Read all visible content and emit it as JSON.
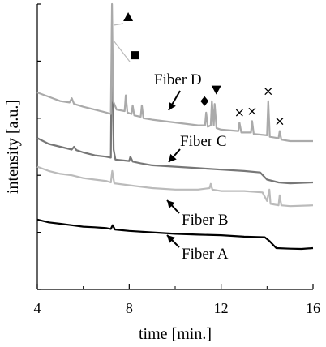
{
  "chart_data": {
    "type": "line",
    "xlabel": "time [min.]",
    "ylabel": "intensity [a.u.]",
    "xlim": [
      4,
      16
    ],
    "xticks": [
      4,
      8,
      12,
      16
    ],
    "ylim": [
      0,
      10
    ],
    "grid": false,
    "series": [
      {
        "name": "Fiber A",
        "color": "#000000",
        "points": [
          [
            4.0,
            2.45
          ],
          [
            4.5,
            2.35
          ],
          [
            5.0,
            2.3
          ],
          [
            5.5,
            2.25
          ],
          [
            6.0,
            2.2
          ],
          [
            6.5,
            2.18
          ],
          [
            7.0,
            2.15
          ],
          [
            7.2,
            2.12
          ],
          [
            7.28,
            2.25
          ],
          [
            7.38,
            2.1
          ],
          [
            8.0,
            2.05
          ],
          [
            9.0,
            2.0
          ],
          [
            10.0,
            1.95
          ],
          [
            11.0,
            1.92
          ],
          [
            12.0,
            1.9
          ],
          [
            13.0,
            1.85
          ],
          [
            13.9,
            1.83
          ],
          [
            14.1,
            1.7
          ],
          [
            14.4,
            1.45
          ],
          [
            15.0,
            1.43
          ],
          [
            15.5,
            1.42
          ],
          [
            16.0,
            1.45
          ]
        ]
      },
      {
        "name": "Fiber B",
        "color": "#bbbbbb",
        "points": [
          [
            4.0,
            4.3
          ],
          [
            4.5,
            4.15
          ],
          [
            5.0,
            4.05
          ],
          [
            5.5,
            4.0
          ],
          [
            6.0,
            3.9
          ],
          [
            6.5,
            3.85
          ],
          [
            7.0,
            3.8
          ],
          [
            7.2,
            3.75
          ],
          [
            7.26,
            4.15
          ],
          [
            7.35,
            3.72
          ],
          [
            8.0,
            3.65
          ],
          [
            8.5,
            3.6
          ],
          [
            9.0,
            3.55
          ],
          [
            10.0,
            3.5
          ],
          [
            11.0,
            3.5
          ],
          [
            11.5,
            3.55
          ],
          [
            11.55,
            3.7
          ],
          [
            11.62,
            3.5
          ],
          [
            12.0,
            3.45
          ],
          [
            13.0,
            3.45
          ],
          [
            13.8,
            3.4
          ],
          [
            14.0,
            3.1
          ],
          [
            14.1,
            3.5
          ],
          [
            14.15,
            3.0
          ],
          [
            14.5,
            2.95
          ],
          [
            14.55,
            3.3
          ],
          [
            14.62,
            2.95
          ],
          [
            15.0,
            2.92
          ],
          [
            16.0,
            2.95
          ]
        ]
      },
      {
        "name": "Fiber C",
        "color": "#777777",
        "points": [
          [
            4.0,
            5.3
          ],
          [
            4.5,
            5.1
          ],
          [
            5.0,
            5.0
          ],
          [
            5.5,
            4.9
          ],
          [
            5.6,
            5.0
          ],
          [
            5.7,
            4.88
          ],
          [
            6.0,
            4.8
          ],
          [
            6.5,
            4.7
          ],
          [
            7.0,
            4.65
          ],
          [
            7.2,
            4.62
          ],
          [
            7.25,
            9.4
          ],
          [
            7.32,
            4.9
          ],
          [
            7.4,
            4.55
          ],
          [
            8.0,
            4.5
          ],
          [
            8.05,
            4.65
          ],
          [
            8.15,
            4.48
          ],
          [
            8.5,
            4.42
          ],
          [
            9.0,
            4.35
          ],
          [
            10.0,
            4.3
          ],
          [
            11.0,
            4.25
          ],
          [
            12.0,
            4.2
          ],
          [
            13.0,
            4.15
          ],
          [
            13.7,
            4.1
          ],
          [
            14.0,
            3.85
          ],
          [
            14.5,
            3.75
          ],
          [
            15.0,
            3.72
          ],
          [
            16.0,
            3.75
          ]
        ]
      },
      {
        "name": "Fiber D",
        "color": "#aaaaaa",
        "points": [
          [
            4.0,
            6.9
          ],
          [
            4.5,
            6.75
          ],
          [
            5.0,
            6.6
          ],
          [
            5.4,
            6.55
          ],
          [
            5.5,
            6.7
          ],
          [
            5.6,
            6.5
          ],
          [
            6.0,
            6.4
          ],
          [
            6.5,
            6.3
          ],
          [
            7.0,
            6.2
          ],
          [
            7.2,
            6.15
          ],
          [
            7.25,
            10.0
          ],
          [
            7.3,
            6.6
          ],
          [
            7.45,
            6.3
          ],
          [
            7.8,
            6.25
          ],
          [
            7.85,
            6.8
          ],
          [
            7.92,
            6.2
          ],
          [
            8.1,
            6.15
          ],
          [
            8.15,
            6.45
          ],
          [
            8.22,
            6.1
          ],
          [
            8.5,
            6.05
          ],
          [
            8.55,
            6.45
          ],
          [
            8.62,
            6.0
          ],
          [
            9.0,
            5.95
          ],
          [
            10.0,
            5.85
          ],
          [
            11.0,
            5.75
          ],
          [
            11.3,
            5.75
          ],
          [
            11.35,
            6.2
          ],
          [
            11.42,
            5.7
          ],
          [
            11.55,
            5.75
          ],
          [
            11.6,
            6.6
          ],
          [
            11.68,
            5.75
          ],
          [
            11.72,
            6.5
          ],
          [
            11.8,
            5.65
          ],
          [
            12.0,
            5.6
          ],
          [
            12.75,
            5.55
          ],
          [
            12.8,
            5.85
          ],
          [
            12.88,
            5.5
          ],
          [
            13.3,
            5.5
          ],
          [
            13.35,
            5.9
          ],
          [
            13.42,
            5.45
          ],
          [
            14.0,
            5.4
          ],
          [
            14.05,
            6.6
          ],
          [
            14.12,
            5.35
          ],
          [
            14.5,
            5.3
          ],
          [
            14.55,
            5.55
          ],
          [
            14.62,
            5.25
          ],
          [
            15.0,
            5.2
          ],
          [
            16.0,
            5.2
          ]
        ]
      }
    ],
    "labels": {
      "fiber_d": "Fiber D",
      "fiber_c": "Fiber C",
      "fiber_b": "Fiber B",
      "fiber_a": "Fiber A"
    },
    "markers": [
      {
        "symbol": "triangle-up",
        "x": 7.25,
        "y": 10.0
      },
      {
        "symbol": "square",
        "x": 7.25,
        "y": 9.4
      },
      {
        "symbol": "diamond",
        "x": 11.35,
        "y": 6.2
      },
      {
        "symbol": "triangle-down",
        "x": 11.65,
        "y": 6.6
      },
      {
        "symbol": "x",
        "x": 12.8,
        "y": 5.85
      },
      {
        "symbol": "x",
        "x": 13.35,
        "y": 5.9
      },
      {
        "symbol": "x",
        "x": 14.05,
        "y": 6.6
      },
      {
        "symbol": "x",
        "x": 14.55,
        "y": 5.55
      }
    ]
  }
}
